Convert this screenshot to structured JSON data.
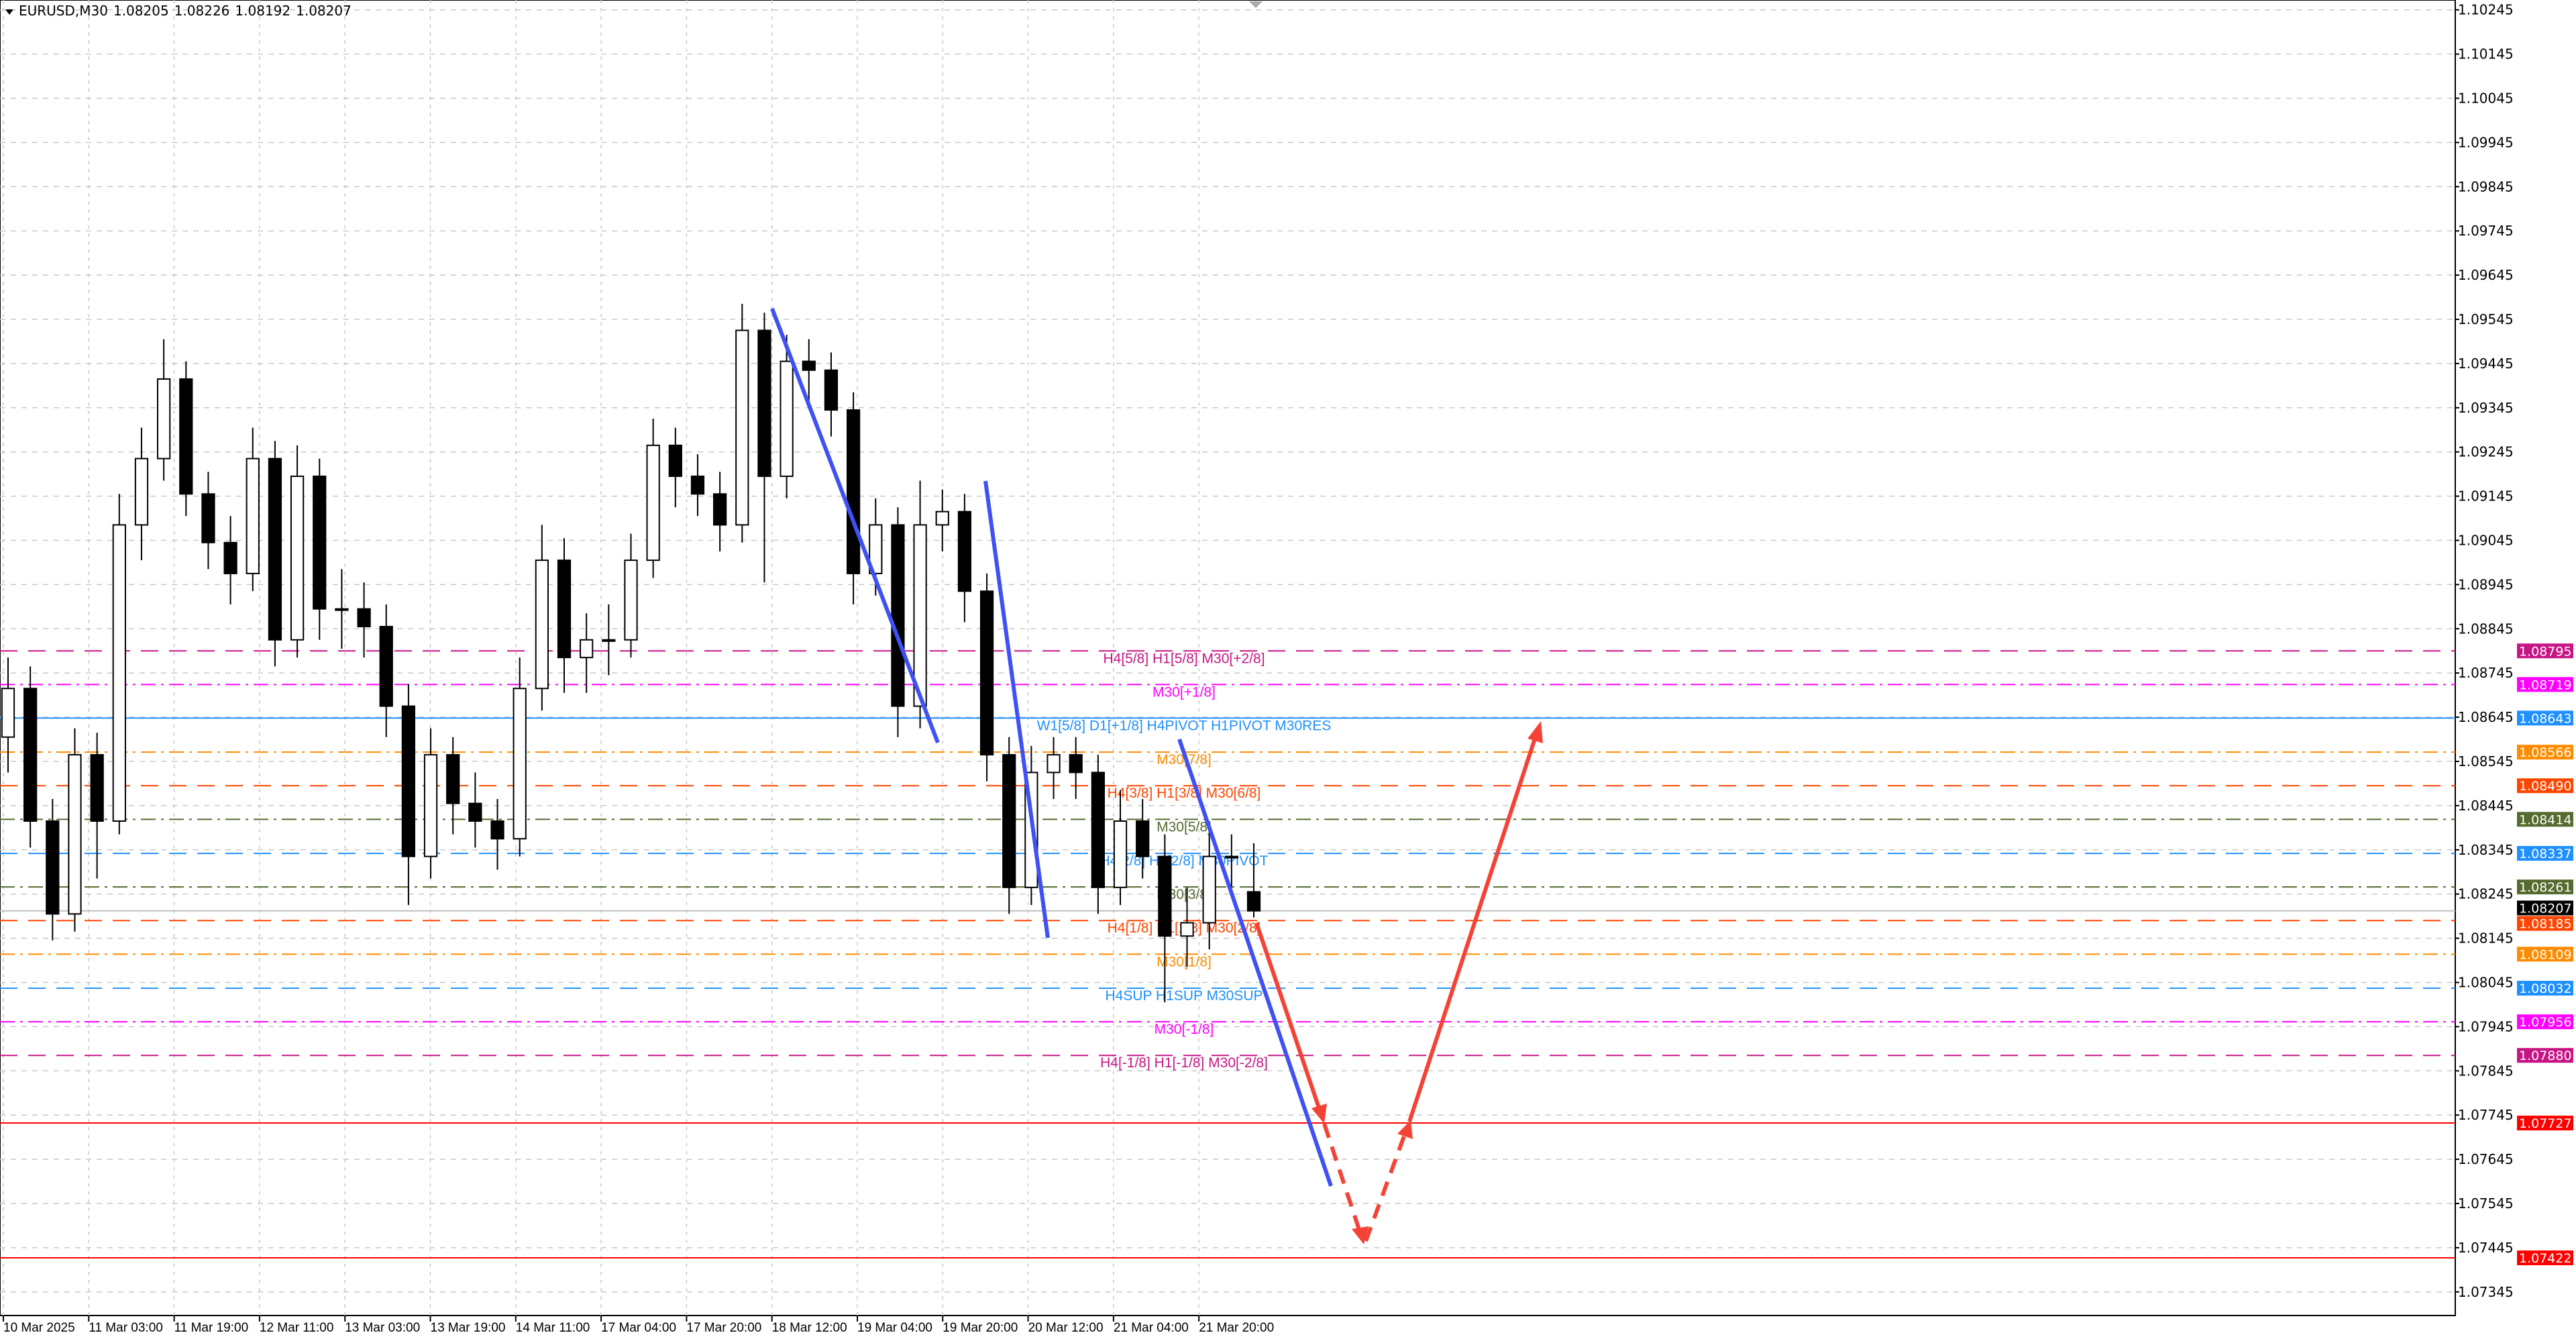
{
  "header": {
    "symbol": "EURUSD,M30",
    "open": "1.08205",
    "high": "1.08226",
    "low": "1.08192",
    "close": "1.08207"
  },
  "chart_data": {
    "type": "candlestick",
    "ylim": [
      1.073,
      1.1027
    ],
    "grid": true,
    "y_ticks": [
      "1.10245",
      "1.10145",
      "1.10045",
      "1.09945",
      "1.09845",
      "1.09745",
      "1.09645",
      "1.09545",
      "1.09445",
      "1.09345",
      "1.09245",
      "1.09145",
      "1.09045",
      "1.08945",
      "1.08845",
      "1.08745",
      "1.08645",
      "1.08545",
      "1.08445",
      "1.08345",
      "1.08245",
      "1.08145",
      "1.08045",
      "1.07945",
      "1.07845",
      "1.07745",
      "1.07645",
      "1.07545",
      "1.07445",
      "1.07345"
    ],
    "x_ticks": [
      "10 Mar 2025",
      "11 Mar 03:00",
      "11 Mar 19:00",
      "12 Mar 11:00",
      "13 Mar 03:00",
      "13 Mar 19:00",
      "14 Mar 11:00",
      "17 Mar 04:00",
      "17 Mar 20:00",
      "18 Mar 12:00",
      "19 Mar 04:00",
      "19 Mar 20:00",
      "20 Mar 12:00",
      "21 Mar 04:00",
      "21 Mar 20:00"
    ],
    "ohlc": [
      [
        1.086,
        1.0878,
        1.0852,
        1.0871
      ],
      [
        1.0871,
        1.0876,
        1.0835,
        1.0841
      ],
      [
        1.0841,
        1.0846,
        1.0814,
        1.082
      ],
      [
        1.082,
        1.0862,
        1.0816,
        1.0856
      ],
      [
        1.0856,
        1.0861,
        1.0828,
        1.0841
      ],
      [
        1.0841,
        1.0915,
        1.0838,
        1.0908
      ],
      [
        1.0908,
        1.093,
        1.09,
        1.0923
      ],
      [
        1.0923,
        1.095,
        1.0918,
        1.0941
      ],
      [
        1.0941,
        1.0945,
        1.091,
        1.0915
      ],
      [
        1.0915,
        1.092,
        1.0898,
        1.0904
      ],
      [
        1.0904,
        1.091,
        1.089,
        1.0897
      ],
      [
        1.0897,
        1.093,
        1.0893,
        1.0923
      ],
      [
        1.0923,
        1.0927,
        1.0876,
        1.0882
      ],
      [
        1.0882,
        1.0926,
        1.0878,
        1.0919
      ],
      [
        1.0919,
        1.0923,
        1.0882,
        1.0889
      ],
      [
        1.0889,
        1.0898,
        1.088,
        1.0889
      ],
      [
        1.0889,
        1.0895,
        1.0878,
        1.0885
      ],
      [
        1.0885,
        1.089,
        1.086,
        1.0867
      ],
      [
        1.0867,
        1.0872,
        1.0822,
        1.0833
      ],
      [
        1.0833,
        1.0862,
        1.0828,
        1.0856
      ],
      [
        1.0856,
        1.086,
        1.0838,
        1.0845
      ],
      [
        1.0845,
        1.0852,
        1.0835,
        1.0841
      ],
      [
        1.0841,
        1.0846,
        1.083,
        1.0837
      ],
      [
        1.0837,
        1.0878,
        1.0833,
        1.0871
      ],
      [
        1.0871,
        1.0908,
        1.0866,
        1.09
      ],
      [
        1.09,
        1.0905,
        1.087,
        1.0878
      ],
      [
        1.0878,
        1.0888,
        1.087,
        1.0882
      ],
      [
        1.0882,
        1.089,
        1.0874,
        1.0882
      ],
      [
        1.0882,
        1.0906,
        1.0878,
        1.09
      ],
      [
        1.09,
        1.0932,
        1.0896,
        1.0926
      ],
      [
        1.0926,
        1.093,
        1.0912,
        1.0919
      ],
      [
        1.0919,
        1.0924,
        1.091,
        1.0915
      ],
      [
        1.0915,
        1.092,
        1.0902,
        1.0908
      ],
      [
        1.0908,
        1.0958,
        1.0904,
        1.0952
      ],
      [
        1.0952,
        1.0956,
        1.0895,
        1.0919
      ],
      [
        1.0919,
        1.0951,
        1.0914,
        1.0945
      ],
      [
        1.0945,
        1.095,
        1.0936,
        1.0943
      ],
      [
        1.0943,
        1.0947,
        1.0928,
        1.0934
      ],
      [
        1.0934,
        1.0938,
        1.089,
        1.0897
      ],
      [
        1.0897,
        1.0914,
        1.0892,
        1.0908
      ],
      [
        1.0908,
        1.0912,
        1.086,
        1.0867
      ],
      [
        1.0867,
        1.0918,
        1.0862,
        1.0908
      ],
      [
        1.0908,
        1.0916,
        1.0902,
        1.0911
      ],
      [
        1.0911,
        1.0915,
        1.0886,
        1.0893
      ],
      [
        1.0893,
        1.0897,
        1.085,
        1.0856
      ],
      [
        1.0856,
        1.086,
        1.082,
        1.0826
      ],
      [
        1.0826,
        1.0858,
        1.0822,
        1.0852
      ],
      [
        1.0852,
        1.086,
        1.0846,
        1.0856
      ],
      [
        1.0856,
        1.086,
        1.0846,
        1.0852
      ],
      [
        1.0852,
        1.0856,
        1.082,
        1.0826
      ],
      [
        1.0826,
        1.0848,
        1.0822,
        1.0841
      ],
      [
        1.0841,
        1.0846,
        1.0828,
        1.0833
      ],
      [
        1.0833,
        1.0838,
        1.08,
        1.0815
      ],
      [
        1.0815,
        1.0826,
        1.0808,
        1.0818
      ],
      [
        1.0818,
        1.084,
        1.0812,
        1.0833
      ],
      [
        1.0833,
        1.0838,
        1.0826,
        1.0833
      ],
      [
        1.0825,
        1.0836,
        1.08192,
        1.08207
      ]
    ],
    "levels": [
      {
        "price": 1.08795,
        "tag": "1.08795",
        "label": "H4[5/8] H1[5/8] M30[+2/8]",
        "color": "#c71585",
        "style": "dashed"
      },
      {
        "price": 1.08719,
        "tag": "1.08719",
        "label": "M30[+1/8]",
        "color": "#ff00ff",
        "style": "dashdot"
      },
      {
        "price": 1.08643,
        "tag": "1.08643",
        "label": "W1[5/8] D1[+1/8] H4PIVOT H1PIVOT M30RES",
        "color": "#1e90ff",
        "style": "solid"
      },
      {
        "price": 1.08566,
        "tag": "1.08566",
        "label": "M30[7/8]",
        "color": "#ff8c00",
        "style": "dashdot"
      },
      {
        "price": 1.0849,
        "tag": "1.08490",
        "label": "H4[3/8] H1[3/8] M30[6/8]",
        "color": "#ff4500",
        "style": "dashed"
      },
      {
        "price": 1.08414,
        "tag": "1.08414",
        "label": "M30[5/8]",
        "color": "#556b2f",
        "style": "dashdot"
      },
      {
        "price": 1.08337,
        "tag": "1.08337",
        "label": "H4[2/8] H1[2/8] M30PIVOT",
        "color": "#1e90ff",
        "style": "dashed"
      },
      {
        "price": 1.08261,
        "tag": "1.08261",
        "label": "M30[3/8]",
        "color": "#556b2f",
        "style": "dashdot"
      },
      {
        "price": 1.08185,
        "tag": "1.08185",
        "label": "H4[1/8] H1[1/8] M30[2/8]",
        "color": "#ff4500",
        "style": "dashed"
      },
      {
        "price": 1.08109,
        "tag": "1.08109",
        "label": "M30[1/8]",
        "color": "#ff8c00",
        "style": "dashdot"
      },
      {
        "price": 1.08032,
        "tag": "1.08032",
        "label": "H4SUP H1SUP M30SUP",
        "color": "#1e90ff",
        "style": "dashed"
      },
      {
        "price": 1.07956,
        "tag": "1.07956",
        "label": "M30[-1/8]",
        "color": "#ff00ff",
        "style": "dashdot"
      },
      {
        "price": 1.0788,
        "tag": "1.07880",
        "label": "H4[-1/8] H1[-1/8] M30[-2/8]",
        "color": "#c71585",
        "style": "dashed"
      },
      {
        "price": 1.07727,
        "tag": "1.07727",
        "label": "",
        "color": "#ff0000",
        "style": "solid"
      },
      {
        "price": 1.07422,
        "tag": "1.07422",
        "label": "",
        "color": "#ff0000",
        "style": "solid"
      }
    ],
    "current_price": {
      "price": 1.08207,
      "tag": "1.08207",
      "color": "#000000"
    },
    "colors": {
      "trendline": "#3f51f5",
      "forecast": "#f44336",
      "grid": "#c8c8c8"
    }
  }
}
